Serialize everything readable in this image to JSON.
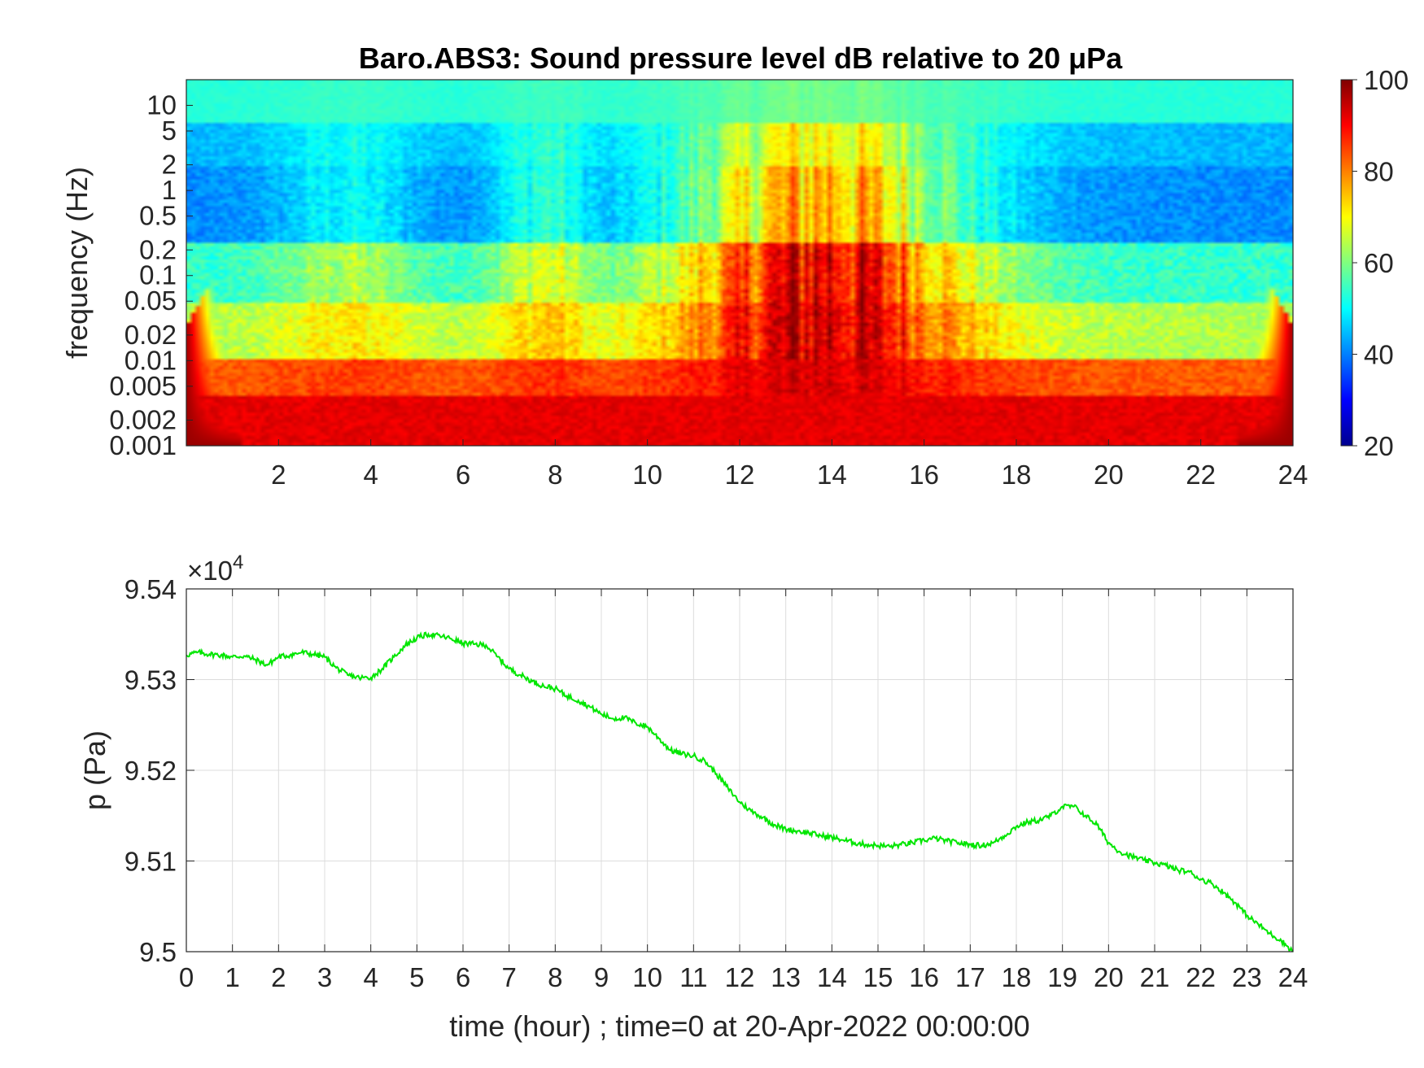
{
  "chart_data": [
    {
      "type": "heatmap",
      "title": "Baro.ABS3: Sound pressure level dB relative to 20 μPa",
      "ylabel": "frequency (Hz)",
      "xlabel": "",
      "xlim": [
        0,
        24
      ],
      "x_ticks": [
        "2",
        "4",
        "6",
        "8",
        "10",
        "12",
        "14",
        "16",
        "18",
        "20",
        "22",
        "24"
      ],
      "y_scale": "log",
      "ylim": [
        0.001,
        20
      ],
      "y_ticks": [
        "10",
        "5",
        "2",
        "1",
        "0.5",
        "0.2",
        "0.1",
        "0.05",
        "0.02",
        "0.01",
        "0.005",
        "0.002",
        "0.001"
      ],
      "y_tick_values": [
        10,
        5,
        2,
        1,
        0.5,
        0.2,
        0.1,
        0.05,
        0.02,
        0.01,
        0.005,
        0.002,
        0.001
      ],
      "colorbar": {
        "colormap": "jet",
        "range": [
          20,
          100
        ],
        "ticks": [
          "100",
          "80",
          "60",
          "40",
          "20"
        ],
        "tick_values": [
          100,
          80,
          60,
          40,
          20
        ]
      },
      "grid": false
    },
    {
      "type": "line",
      "title": "",
      "xlabel": "time (hour) ; time=0 at 20-Apr-2022 00:00:00",
      "ylabel": "p (Pa)",
      "exponent_label": "×10",
      "exponent_power": "4",
      "xlim": [
        0,
        24
      ],
      "ylim": [
        9.5,
        9.54
      ],
      "x_ticks": [
        "0",
        "1",
        "2",
        "3",
        "4",
        "5",
        "6",
        "7",
        "8",
        "9",
        "10",
        "11",
        "12",
        "13",
        "14",
        "15",
        "16",
        "17",
        "18",
        "19",
        "20",
        "21",
        "22",
        "23",
        "24"
      ],
      "y_ticks": [
        "9.54",
        "9.53",
        "9.52",
        "9.51",
        "9.5"
      ],
      "y_tick_values": [
        9.54,
        9.53,
        9.52,
        9.51,
        9.5
      ],
      "grid": true,
      "line_color": "#00e600",
      "series": [
        {
          "x": [
            0,
            0.25,
            0.5,
            0.75,
            1,
            1.25,
            1.5,
            1.75,
            2,
            2.25,
            2.5,
            2.75,
            3,
            3.25,
            3.5,
            3.75,
            4,
            4.25,
            4.5,
            4.75,
            5,
            5.25,
            5.5,
            5.75,
            6,
            6.25,
            6.5,
            6.75,
            7,
            7.25,
            7.5,
            7.75,
            8,
            8.25,
            8.5,
            8.75,
            9,
            9.25,
            9.5,
            9.75,
            10,
            10.25,
            10.5,
            10.75,
            11,
            11.25,
            11.5,
            11.75,
            12,
            12.25,
            12.5,
            12.75,
            13,
            13.25,
            13.5,
            13.75,
            14,
            14.25,
            14.5,
            14.75,
            15,
            15.25,
            15.5,
            15.75,
            16,
            16.25,
            16.5,
            16.75,
            17,
            17.25,
            17.5,
            17.75,
            18,
            18.25,
            18.5,
            18.75,
            19,
            19.25,
            19.5,
            19.75,
            20,
            20.25,
            20.5,
            20.75,
            21,
            21.25,
            21.5,
            21.75,
            22,
            22.25,
            22.5,
            22.75,
            23,
            23.25,
            23.5,
            23.75,
            24
          ],
          "y": [
            9.5327,
            9.533,
            9.5328,
            9.5327,
            9.5325,
            9.5326,
            9.5322,
            9.5316,
            9.5325,
            9.5327,
            9.533,
            9.5328,
            9.5325,
            9.5313,
            9.5305,
            9.5302,
            9.5302,
            9.5312,
            9.5325,
            9.5338,
            9.5346,
            9.535,
            9.5348,
            9.5345,
            9.534,
            9.5339,
            9.5338,
            9.5325,
            9.5312,
            9.5305,
            9.5298,
            9.5293,
            9.529,
            9.5282,
            9.5277,
            9.527,
            9.5262,
            9.5257,
            9.5258,
            9.5252,
            9.5248,
            9.5235,
            9.5222,
            9.5218,
            9.5216,
            9.521,
            9.5196,
            9.518,
            9.5165,
            9.5155,
            9.5148,
            9.514,
            9.5135,
            9.5133,
            9.5131,
            9.5128,
            9.5126,
            9.5123,
            9.512,
            9.5118,
            9.5117,
            9.5116,
            9.5118,
            9.512,
            9.5123,
            9.5125,
            9.5122,
            9.512,
            9.5118,
            9.5117,
            9.512,
            9.5128,
            9.5138,
            9.5143,
            9.5145,
            9.515,
            9.516,
            9.516,
            9.515,
            9.514,
            9.512,
            9.511,
            9.5105,
            9.5101,
            9.5098,
            9.5095,
            9.509,
            9.5088,
            9.508,
            9.5075,
            9.5065,
            9.5054,
            9.504,
            9.503,
            9.502,
            9.5012,
            9.5
          ]
        }
      ]
    }
  ]
}
